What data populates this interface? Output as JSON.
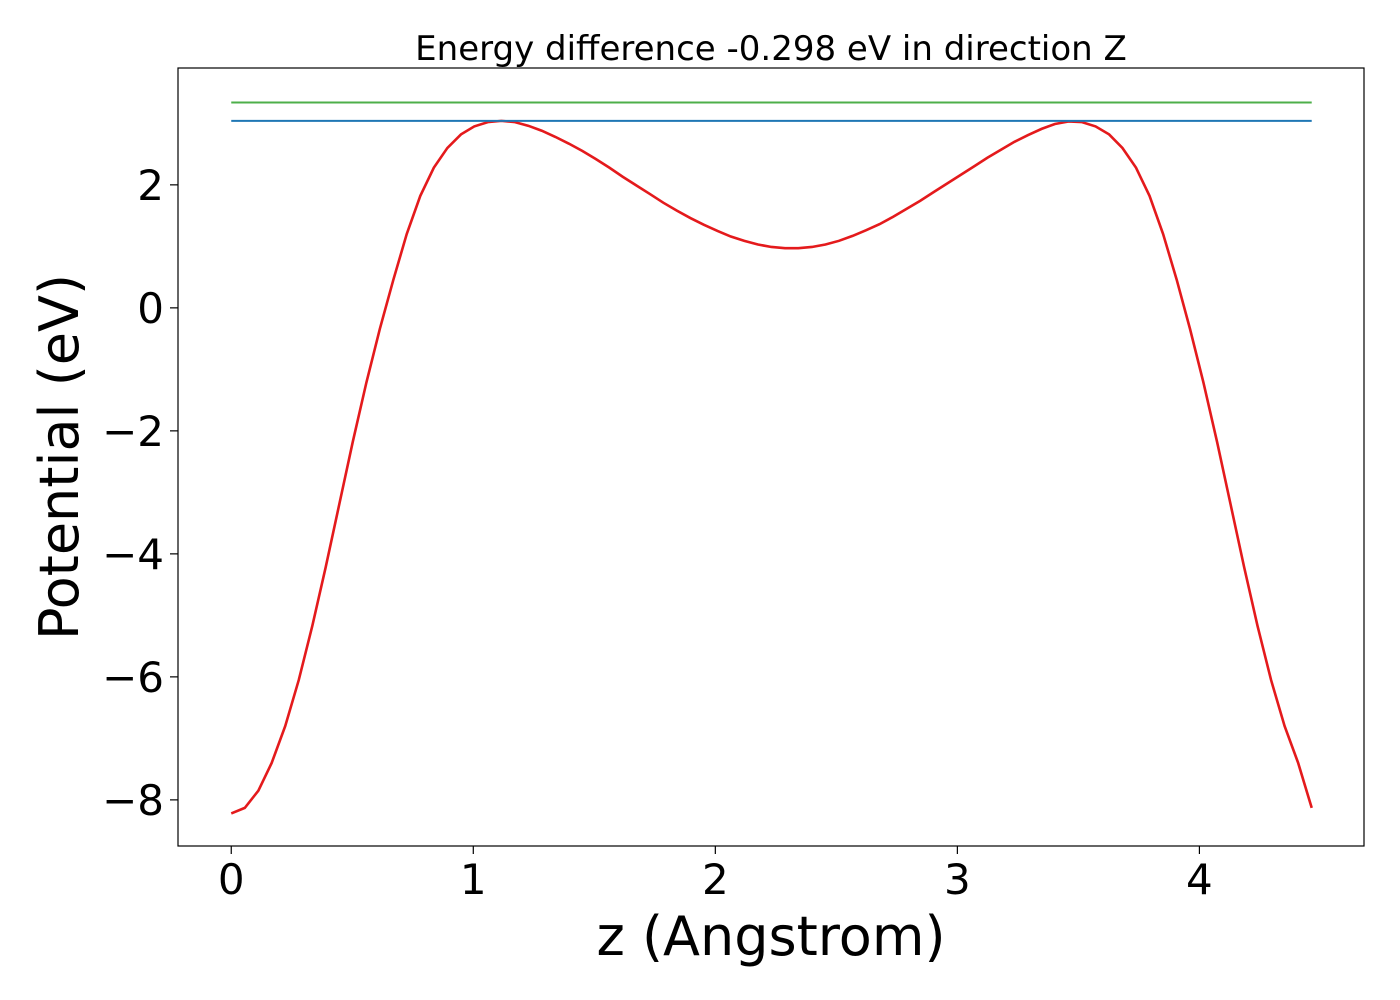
{
  "chart_data": {
    "type": "line",
    "title": "Energy difference -0.298 eV in direction Z",
    "xlabel": "z (Angstrom)",
    "ylabel": "Potential (eV)",
    "xlim": [
      -0.22,
      4.68
    ],
    "ylim": [
      -8.75,
      3.9
    ],
    "xticks": [
      0,
      1,
      2,
      3,
      4
    ],
    "yticks": [
      -8,
      -6,
      -4,
      -2,
      0,
      2
    ],
    "xtick_labels": [
      "0",
      "1",
      "2",
      "3",
      "4"
    ],
    "ytick_labels": [
      "−8",
      "−6",
      "−4",
      "−2",
      "0",
      "2"
    ],
    "grid": false,
    "series": [
      {
        "color": "#e41a1c",
        "x": [
          0,
          0.056,
          0.112,
          0.167,
          0.223,
          0.279,
          0.335,
          0.39,
          0.446,
          0.502,
          0.558,
          0.614,
          0.67,
          0.725,
          0.781,
          0.837,
          0.893,
          0.949,
          1.004,
          1.06,
          1.116,
          1.172,
          1.228,
          1.283,
          1.339,
          1.395,
          1.451,
          1.506,
          1.562,
          1.618,
          1.674,
          1.73,
          1.785,
          1.841,
          1.897,
          1.953,
          2.009,
          2.064,
          2.12,
          2.176,
          2.232,
          2.288,
          2.343,
          2.399,
          2.455,
          2.511,
          2.567,
          2.622,
          2.678,
          2.734,
          2.79,
          2.846,
          2.901,
          2.957,
          3.013,
          3.069,
          3.124,
          3.18,
          3.236,
          3.292,
          3.348,
          3.403,
          3.459,
          3.515,
          3.571,
          3.627,
          3.682,
          3.738,
          3.794,
          3.85,
          3.906,
          3.961,
          4.017,
          4.073,
          4.129,
          4.185,
          4.24,
          4.296,
          4.352,
          4.408,
          4.464
        ],
        "y": [
          -8.22,
          -8.13,
          -7.85,
          -7.4,
          -6.8,
          -6.05,
          -5.17,
          -4.22,
          -3.2,
          -2.18,
          -1.22,
          -0.34,
          0.46,
          1.2,
          1.82,
          2.28,
          2.6,
          2.82,
          2.95,
          3.02,
          3.04,
          3.02,
          2.96,
          2.88,
          2.78,
          2.67,
          2.55,
          2.42,
          2.28,
          2.13,
          1.99,
          1.85,
          1.71,
          1.58,
          1.46,
          1.35,
          1.25,
          1.16,
          1.09,
          1.03,
          0.99,
          0.97,
          0.97,
          0.99,
          1.03,
          1.09,
          1.17,
          1.26,
          1.36,
          1.48,
          1.61,
          1.74,
          1.88,
          2.02,
          2.16,
          2.3,
          2.44,
          2.57,
          2.7,
          2.81,
          2.91,
          2.99,
          3.03,
          3.02,
          2.95,
          2.82,
          2.6,
          2.28,
          1.82,
          1.2,
          0.46,
          -0.34,
          -1.22,
          -2.18,
          -3.2,
          -4.22,
          -5.17,
          -6.05,
          -6.8,
          -7.4,
          -8.13
        ]
      },
      {
        "color": "#1f77b4",
        "x": [
          0,
          4.464
        ],
        "y": [
          3.04,
          3.04
        ]
      },
      {
        "color": "#4daf4a",
        "x": [
          0,
          4.464
        ],
        "y": [
          3.34,
          3.34
        ]
      }
    ]
  }
}
